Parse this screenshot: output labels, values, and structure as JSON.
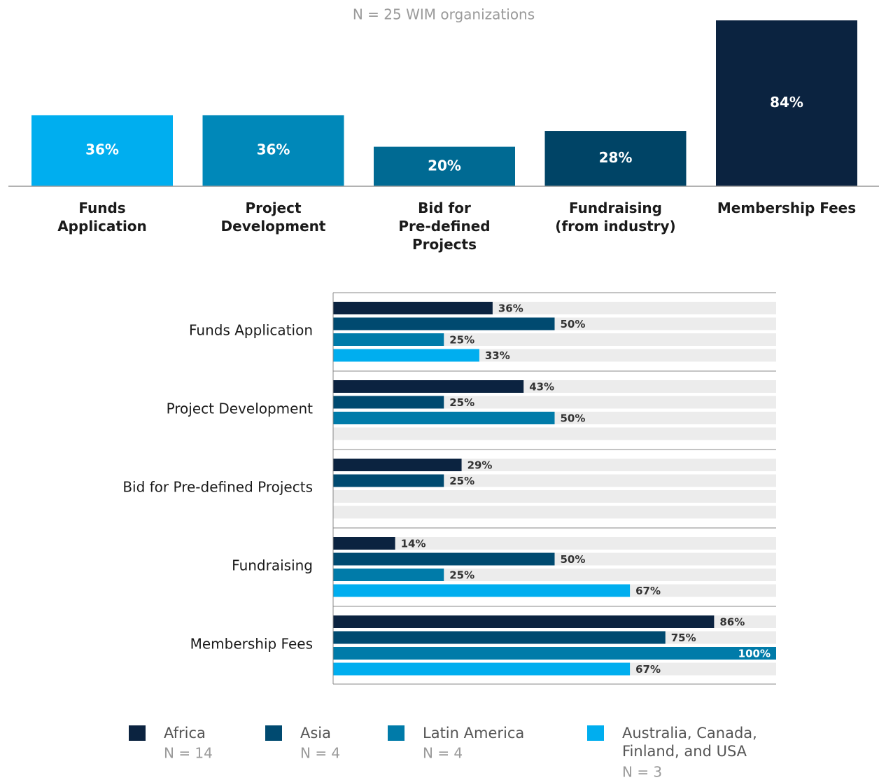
{
  "chart_data": [
    {
      "type": "bar",
      "subtitle": "N = 25 WIM organizations",
      "categories": [
        "Funds\nApplication",
        "Project\nDevelopment",
        "Bid for\nPre-defined\nProjects",
        "Fundraising\n(from industry)",
        "Membership Fees"
      ],
      "values": [
        36,
        36,
        20,
        28,
        84
      ],
      "value_labels": [
        "36%",
        "36%",
        "20%",
        "28%",
        "84%"
      ],
      "colors": [
        "#00aeef",
        "#0088b9",
        "#006a93",
        "#004466",
        "#0b2340"
      ]
    },
    {
      "type": "grouped_hbar",
      "categories": [
        "Funds Application",
        "Project Development",
        "Bid for Pre-defined Projects",
        "Fundraising",
        "Membership Fees"
      ],
      "xlim": [
        0,
        100
      ],
      "series": [
        {
          "name": "Africa",
          "sample": "N = 14",
          "color": "#0b2340",
          "values": [
            36,
            43,
            29,
            14,
            86
          ],
          "value_labels": [
            "36%",
            "43%",
            "29%",
            "14%",
            "86%"
          ]
        },
        {
          "name": "Asia",
          "sample": "N = 4",
          "color": "#004a70",
          "values": [
            50,
            25,
            25,
            50,
            75
          ],
          "value_labels": [
            "50%",
            "25%",
            "25%",
            "50%",
            "75%"
          ]
        },
        {
          "name": "Latin America",
          "sample": "N = 4",
          "color": "#007ba9",
          "values": [
            25,
            50,
            null,
            25,
            100
          ],
          "value_labels": [
            "25%",
            "50%",
            null,
            "25%",
            "100%"
          ]
        },
        {
          "name": "Australia, Canada, Finland, and USA",
          "sample": "N = 3",
          "color": "#00aeef",
          "values": [
            33,
            null,
            null,
            67,
            67
          ],
          "value_labels": [
            "33%",
            null,
            null,
            "67%",
            "67%"
          ]
        }
      ]
    }
  ]
}
